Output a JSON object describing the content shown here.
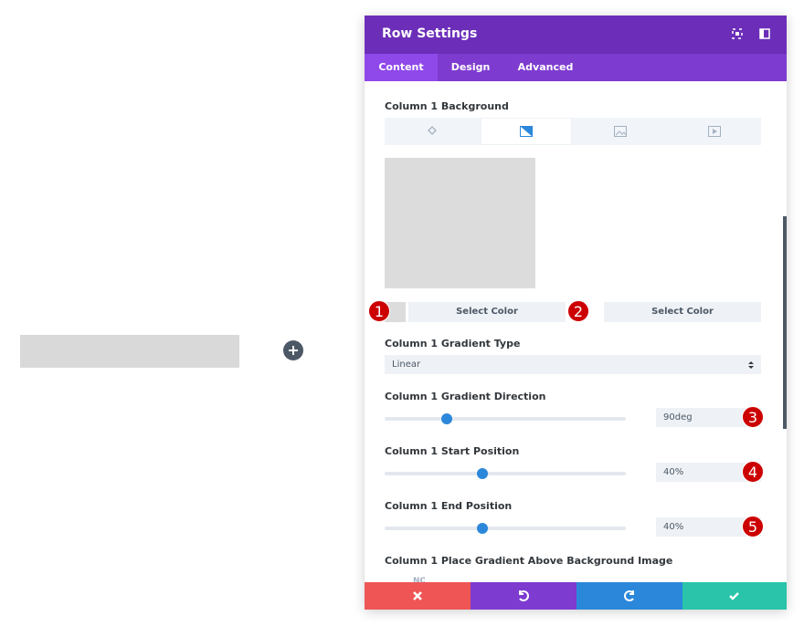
{
  "header": {
    "title": "Row Settings",
    "tabs": [
      "Content",
      "Design",
      "Advanced"
    ]
  },
  "background": {
    "label": "Column 1 Background",
    "color_buttons": [
      "Select Color",
      "Select Color"
    ]
  },
  "fields": [
    {
      "label": "Column 1 Gradient Type",
      "value": "Linear"
    },
    {
      "label": "Column 1 Gradient Direction",
      "value": "90deg"
    },
    {
      "label": "Column 1 Start Position",
      "value": "40%"
    },
    {
      "label": "Column 1 End Position",
      "value": "40%"
    },
    {
      "label": "Column 1 Place Gradient Above Background Image",
      "value": "NO"
    }
  ],
  "badges": [
    "1",
    "2",
    "3",
    "4",
    "5"
  ]
}
